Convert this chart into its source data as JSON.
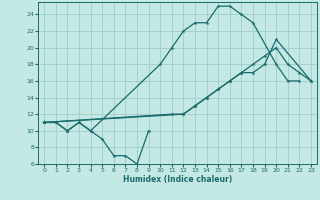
{
  "xlabel": "Humidex (Indice chaleur)",
  "ylabel": "",
  "bg_color": "#c4e8e4",
  "grid_color": "#a0cccc",
  "line_color": "#1a6b6b",
  "xlim": [
    -0.5,
    23.5
  ],
  "ylim": [
    6,
    25.5
  ],
  "xticks": [
    0,
    1,
    2,
    3,
    4,
    5,
    6,
    7,
    8,
    9,
    10,
    11,
    12,
    13,
    14,
    15,
    16,
    17,
    18,
    19,
    20,
    21,
    22,
    23
  ],
  "yticks": [
    6,
    8,
    10,
    12,
    14,
    16,
    18,
    20,
    22,
    24
  ],
  "lines": [
    {
      "x": [
        0,
        1,
        2,
        3,
        4,
        5,
        6,
        7,
        8,
        9
      ],
      "y": [
        11,
        11,
        10,
        11,
        10,
        9,
        7,
        7,
        6,
        10
      ]
    },
    {
      "x": [
        0,
        1,
        2,
        3,
        4,
        10,
        11,
        12,
        13,
        14,
        15,
        16,
        17,
        18,
        20,
        21,
        22
      ],
      "y": [
        11,
        11,
        10,
        11,
        10,
        18,
        20,
        22,
        23,
        23,
        25,
        25,
        24,
        23,
        18,
        16,
        16
      ]
    },
    {
      "x": [
        0,
        12,
        13,
        14,
        15,
        16,
        17,
        18,
        19,
        20,
        23
      ],
      "y": [
        11,
        12,
        13,
        14,
        15,
        16,
        17,
        17,
        18,
        21,
        16
      ]
    },
    {
      "x": [
        0,
        11,
        12,
        13,
        14,
        15,
        16,
        17,
        18,
        19,
        20,
        21,
        22,
        23
      ],
      "y": [
        11,
        12,
        12,
        13,
        14,
        15,
        16,
        17,
        18,
        19,
        20,
        18,
        17,
        16
      ]
    }
  ]
}
